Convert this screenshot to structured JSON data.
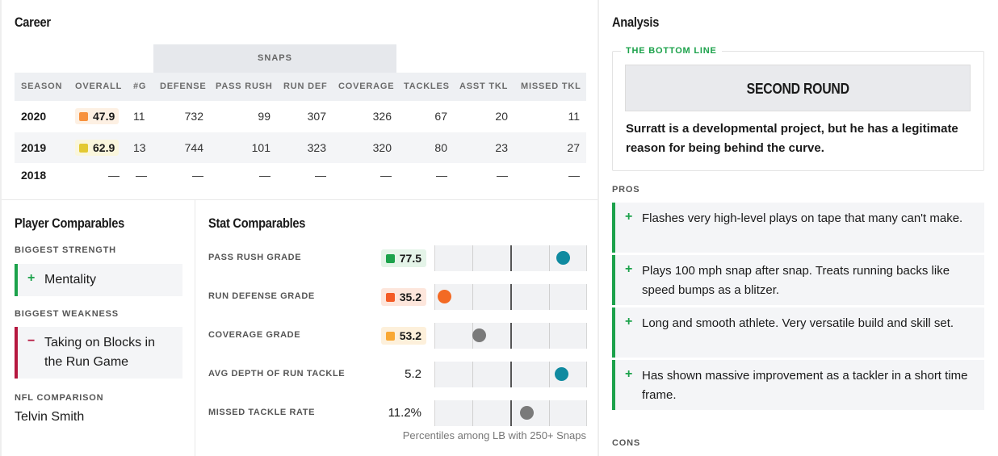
{
  "career": {
    "title": "Career",
    "group_header": "SNAPS",
    "columns": [
      "SEASON",
      "OVERALL",
      "#G",
      "DEFENSE",
      "PASS RUSH",
      "RUN DEF",
      "COVERAGE",
      "TACKLES",
      "ASST TKL",
      "MISSED TKL"
    ],
    "rows": [
      {
        "season": "2020",
        "overall": "47.9",
        "overall_color": "#f7913d",
        "overall_bg": "#fdf0e3",
        "games": "11",
        "defense": "732",
        "pass_rush": "99",
        "run_def": "307",
        "coverage": "326",
        "tackles": "67",
        "asst_tkl": "20",
        "missed_tkl": "11"
      },
      {
        "season": "2019",
        "overall": "62.9",
        "overall_color": "#e3c932",
        "overall_bg": "#faf6dc",
        "games": "13",
        "defense": "744",
        "pass_rush": "101",
        "run_def": "323",
        "coverage": "320",
        "tackles": "80",
        "asst_tkl": "23",
        "missed_tkl": "27"
      },
      {
        "season": "2018",
        "overall": "—",
        "games": "—",
        "defense": "—",
        "pass_rush": "—",
        "run_def": "—",
        "coverage": "—",
        "tackles": "—",
        "asst_tkl": "—",
        "missed_tkl": "—"
      }
    ]
  },
  "player_comparables": {
    "title": "Player Comparables",
    "strength_label": "BIGGEST STRENGTH",
    "strength_sign": "+",
    "strength": "Mentality",
    "weakness_label": "BIGGEST WEAKNESS",
    "weakness_sign": "−",
    "weakness": "Taking on Blocks in the Run Game",
    "nfl_label": "NFL COMPARISON",
    "nfl_comparison": "Telvin Smith",
    "colors": {
      "positive": "#1ca24b",
      "negative": "#b5173f"
    }
  },
  "stat_comparables": {
    "title": "Stat Comparables",
    "footnote": "Percentiles among LB with 250+ Snaps",
    "stats": [
      {
        "label": "PASS RUSH GRADE",
        "value": "77.5",
        "graded": true,
        "chip_color": "#1ca24b",
        "chip_bg": "#e4f4e8",
        "percentile": 0.88,
        "dot_color": "#0f8aa0"
      },
      {
        "label": "RUN DEFENSE GRADE",
        "value": "35.2",
        "graded": true,
        "chip_color": "#f45b26",
        "chip_bg": "#fde6dc",
        "percentile": 0.02,
        "dot_color": "#f36a24"
      },
      {
        "label": "COVERAGE GRADE",
        "value": "53.2",
        "graded": true,
        "chip_color": "#f9a833",
        "chip_bg": "#fdf0db",
        "percentile": 0.27,
        "dot_color": "#7a7a7a"
      },
      {
        "label": "AVG DEPTH OF RUN TACKLE",
        "value": "5.2",
        "graded": false,
        "percentile": 0.87,
        "dot_color": "#0f8aa0"
      },
      {
        "label": "MISSED TACKLE RATE",
        "value": "11.2%",
        "graded": false,
        "percentile": 0.62,
        "dot_color": "#7a7a7a"
      }
    ]
  },
  "analysis": {
    "title": "Analysis",
    "bottom_line_label": "THE BOTTOM LINE",
    "verdict": "SECOND ROUND",
    "summary": "Surratt is a developmental project, but he has a legitimate reason for being behind the curve.",
    "pros_label": "PROS",
    "pros_sign": "+",
    "pros": [
      "Flashes very high-level plays on tape that many can't make.",
      "Plays 100 mph snap after snap. Treats running backs like speed bumps as a blitzer.",
      "Long and smooth athlete. Very versatile build and skill set.",
      "Has shown massive improvement as a tackler in a short time frame."
    ],
    "cons_label": "CONS"
  }
}
